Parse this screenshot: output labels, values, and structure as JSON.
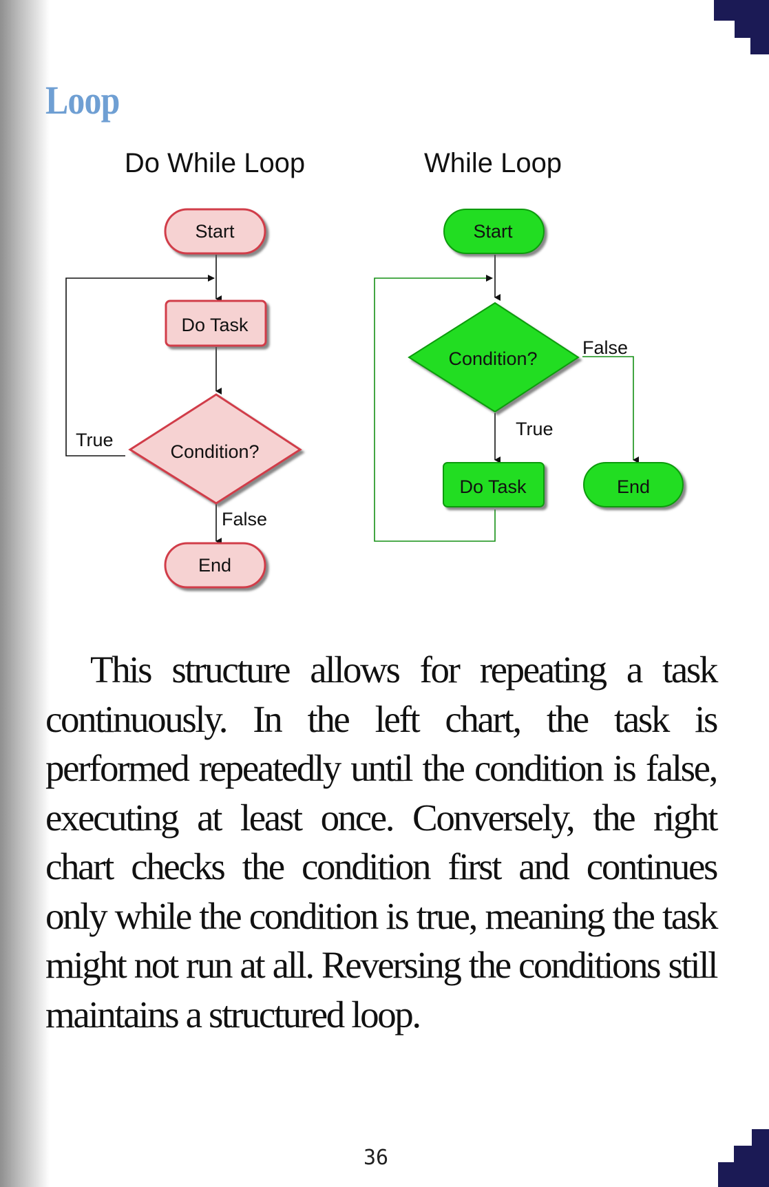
{
  "page": {
    "title": "Loop",
    "body": "This structure allows for repeating a task continuously. In the left chart, the task is performed repeatedly until the condition is false, executing at least once. Conversely, the right chart checks the condition first and continues only while the condition is true, meaning the task might not run at all. Reversing the conditions still maintains a structured loop.",
    "page_number": "36"
  },
  "diagram": {
    "do_while": {
      "heading": "Do While Loop",
      "start": "Start",
      "task": "Do Task",
      "condition": "Condition?",
      "true_label": "True",
      "false_label": "False",
      "end": "End",
      "colors": {
        "fill": "#f6d2d2",
        "stroke": "#d13c4a",
        "line": "#111111"
      }
    },
    "while": {
      "heading": "While Loop",
      "start": "Start",
      "condition": "Condition?",
      "false_label": "False",
      "true_label": "True",
      "task": "Do Task",
      "end": "End",
      "colors": {
        "fill": "#22dd22",
        "stroke": "#0a9a0a",
        "line": "#138f13"
      }
    }
  },
  "theme": {
    "title_color": "#6f9fd3",
    "corner_decoration": "#1b1a55"
  }
}
